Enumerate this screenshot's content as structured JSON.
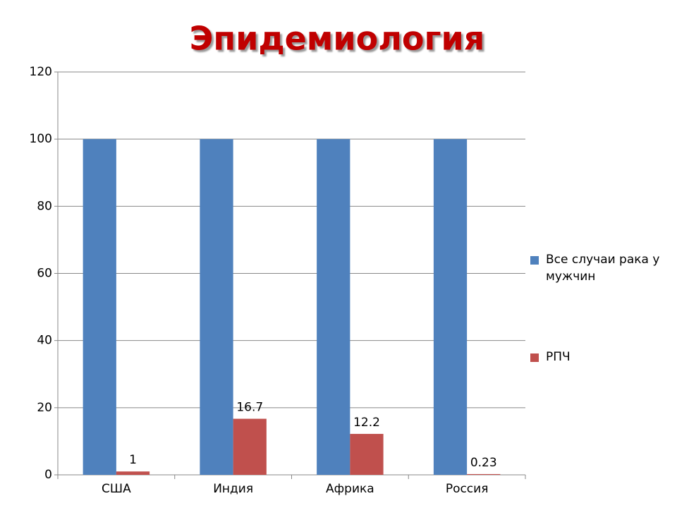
{
  "chart_data": {
    "type": "bar",
    "title": "Эпидемиология",
    "categories": [
      "США",
      "Индия",
      "Африка",
      "Россия"
    ],
    "series": [
      {
        "name": "Все случаи рака у мужчин",
        "color": "#4f81bd",
        "values": [
          100,
          100,
          100,
          100
        ]
      },
      {
        "name": "РПЧ",
        "color": "#c0504d",
        "values": [
          1,
          16.7,
          12.2,
          0.23
        ],
        "data_labels": true
      }
    ],
    "ylim": [
      0,
      120
    ],
    "yticks": [
      0,
      20,
      40,
      60,
      80,
      100,
      120
    ],
    "grid": true,
    "legend": "right"
  }
}
